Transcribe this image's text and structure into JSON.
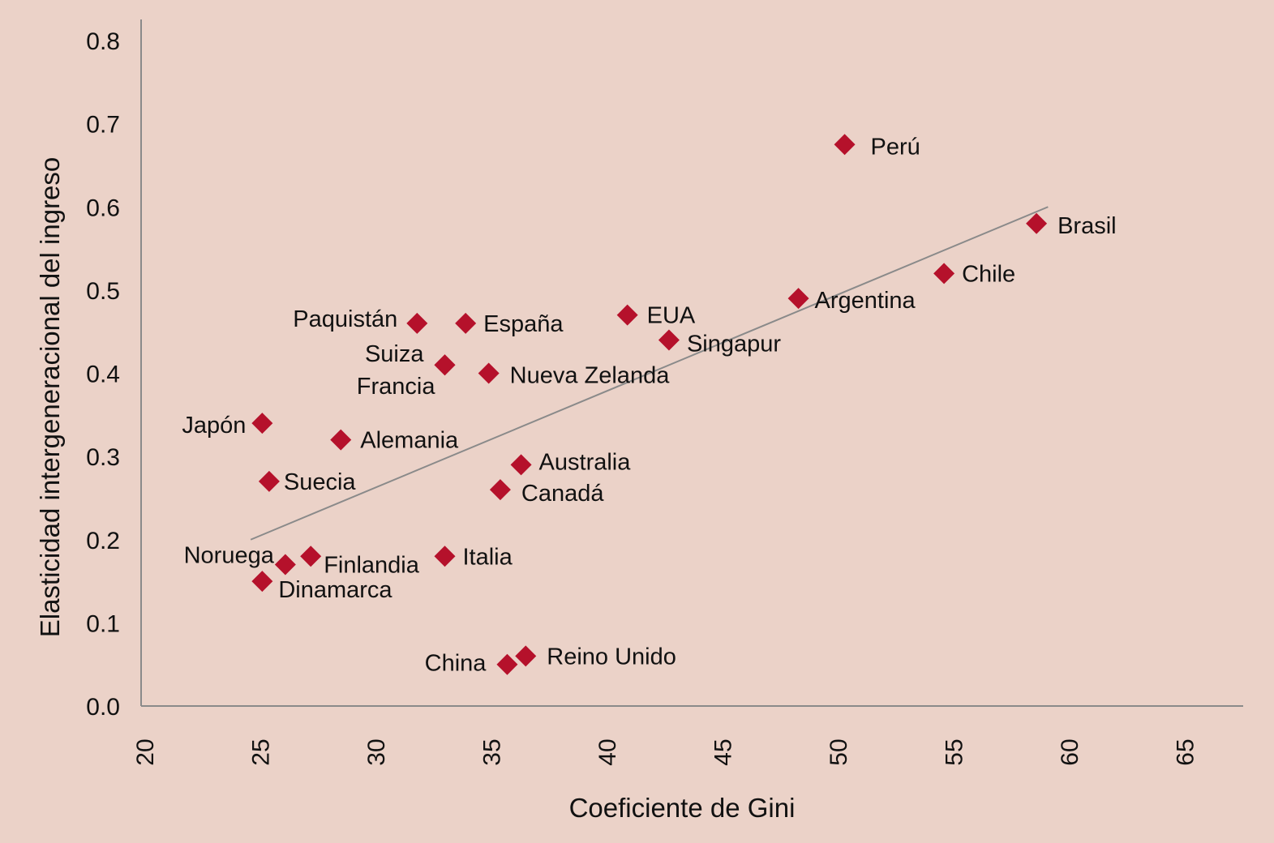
{
  "chart_data": {
    "type": "scatter",
    "xlabel": "Coeficiente de Gini",
    "ylabel": "Elasticidad intergeneracional del ingreso",
    "xlim": [
      20,
      67
    ],
    "ylim": [
      0,
      0.8
    ],
    "x_ticks": [
      "20",
      "25",
      "30",
      "35",
      "40",
      "45",
      "50",
      "55",
      "60",
      "65"
    ],
    "y_ticks": [
      "0.0",
      "0.1",
      "0.2",
      "0.3",
      "0.4",
      "0.5",
      "0.6",
      "0.7",
      "0.8"
    ],
    "points": [
      {
        "label": "Perú",
        "x": 50.3,
        "y": 0.675
      },
      {
        "label": "Brasil",
        "x": 58.6,
        "y": 0.58
      },
      {
        "label": "Chile",
        "x": 54.6,
        "y": 0.52
      },
      {
        "label": "Argentina",
        "x": 48.3,
        "y": 0.49
      },
      {
        "label": "EUA",
        "x": 40.9,
        "y": 0.47
      },
      {
        "label": "Singapur",
        "x": 42.7,
        "y": 0.44
      },
      {
        "label": "Paquistán",
        "x": 31.8,
        "y": 0.46
      },
      {
        "label": "España",
        "x": 33.9,
        "y": 0.46
      },
      {
        "label": "Suiza",
        "x": 33.0,
        "y": 0.41
      },
      {
        "label": "Francia",
        "x": 33.0,
        "y": 0.41
      },
      {
        "label": "Nueva Zelanda",
        "x": 34.9,
        "y": 0.4
      },
      {
        "label": "Japón",
        "x": 25.1,
        "y": 0.34
      },
      {
        "label": "Alemania",
        "x": 28.5,
        "y": 0.32
      },
      {
        "label": "Australia",
        "x": 36.3,
        "y": 0.29
      },
      {
        "label": "Suecia",
        "x": 25.4,
        "y": 0.27
      },
      {
        "label": "Canadá",
        "x": 35.4,
        "y": 0.26
      },
      {
        "label": "Italia",
        "x": 33.0,
        "y": 0.18
      },
      {
        "label": "Noruega",
        "x": 26.1,
        "y": 0.17
      },
      {
        "label": "Finlandia",
        "x": 27.2,
        "y": 0.18
      },
      {
        "label": "Dinamarca",
        "x": 25.1,
        "y": 0.15
      },
      {
        "label": "Reino Unido",
        "x": 36.5,
        "y": 0.06
      },
      {
        "label": "China",
        "x": 35.7,
        "y": 0.05
      }
    ],
    "trendline": {
      "x": [
        24.6,
        59.1
      ],
      "y": [
        0.2,
        0.6
      ]
    },
    "colors": {
      "marker": "#b5112b",
      "trendline": "#8a8a8a",
      "axis": "#8a8a8a",
      "background": "#ebd2c8"
    }
  }
}
